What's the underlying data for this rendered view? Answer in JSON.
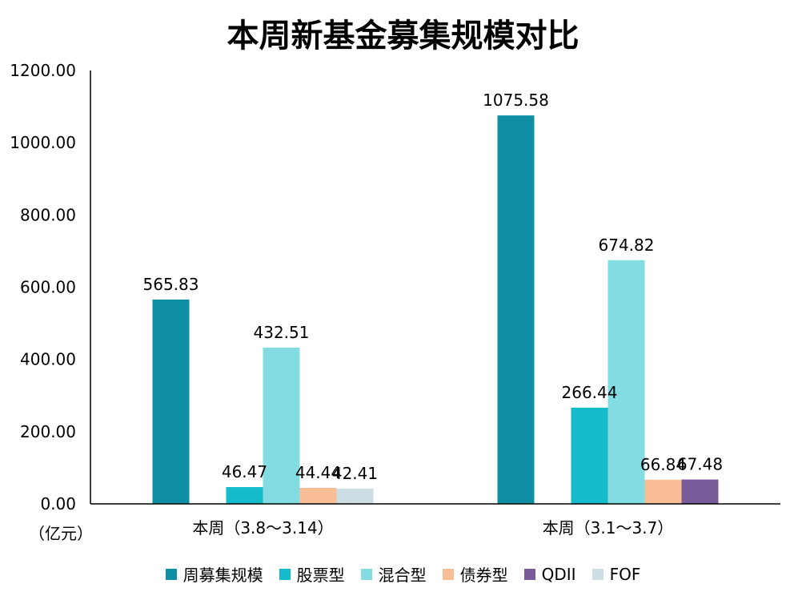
{
  "chart_data": {
    "type": "bar",
    "title": "本周新基金募集规模对比",
    "unit_label": "（亿元）",
    "ylim": [
      0,
      1200
    ],
    "y_ticks": [
      "0.00",
      "200.00",
      "400.00",
      "600.00",
      "800.00",
      "1000.00",
      "1200.00"
    ],
    "grid": false,
    "legend_position": "bottom",
    "categories": [
      "本周（3.8～3.14）",
      "本周（3.1～3.7）"
    ],
    "series": [
      {
        "name": "周募集规模",
        "color": "#0E8FA3",
        "values": [
          565.83,
          1075.58
        ]
      },
      {
        "name": "股票型",
        "color": "#13BBCB",
        "values": [
          46.47,
          266.44
        ]
      },
      {
        "name": "混合型",
        "color": "#84DCE3",
        "values": [
          432.51,
          674.82
        ]
      },
      {
        "name": "债券型",
        "color": "#F9BE96",
        "values": [
          44.44,
          66.84
        ]
      },
      {
        "name": "QDII",
        "color": "#7A5B9A",
        "values": [
          null,
          67.48
        ]
      },
      {
        "name": "FOF",
        "color": "#CCDDE3",
        "values": [
          42.41,
          null
        ]
      }
    ]
  }
}
